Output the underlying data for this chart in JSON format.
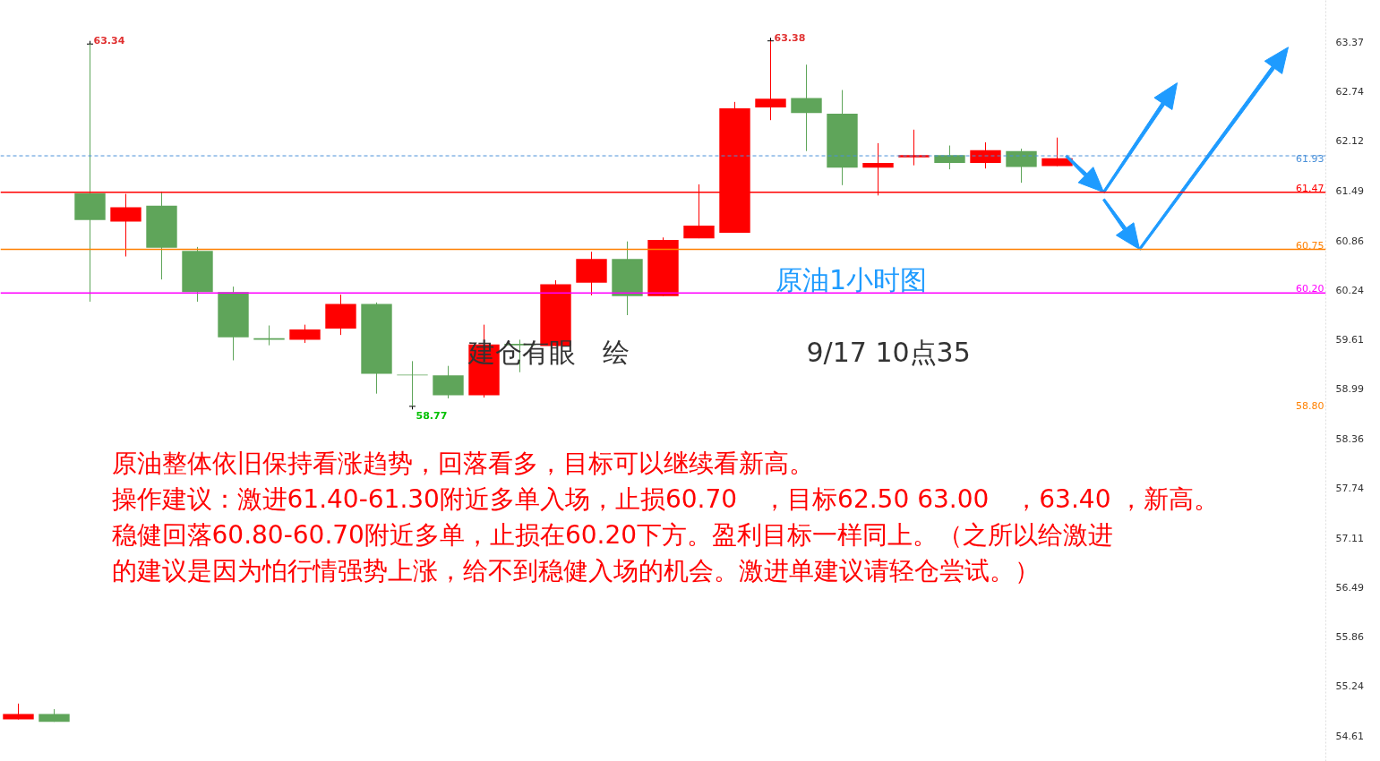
{
  "chart_data": {
    "type": "candlestick",
    "categories": [
      null,
      null,
      null,
      null,
      null,
      null,
      null,
      null,
      null,
      null,
      null,
      null,
      null,
      null,
      null,
      null,
      null,
      null,
      null,
      null,
      null,
      null,
      null,
      null,
      null,
      null,
      null,
      null,
      null,
      null,
      null,
      null,
      null,
      null,
      null,
      null,
      null
    ],
    "ohlc": [
      [
        54.82,
        55.02,
        54.82,
        54.89
      ],
      [
        54.89,
        54.95,
        54.79,
        54.79
      ],
      [
        61.46,
        63.34,
        60.09,
        61.12
      ],
      [
        61.1,
        61.45,
        60.66,
        61.28
      ],
      [
        61.3,
        61.48,
        60.37,
        60.77
      ],
      [
        60.73,
        60.78,
        60.09,
        60.21
      ],
      [
        60.21,
        60.28,
        59.35,
        59.64
      ],
      [
        59.63,
        59.79,
        59.54,
        59.61
      ],
      [
        59.61,
        59.8,
        59.57,
        59.74
      ],
      [
        59.75,
        60.18,
        59.67,
        60.06
      ],
      [
        60.06,
        60.08,
        58.93,
        59.18
      ],
      [
        59.17,
        59.34,
        58.77,
        59.16
      ],
      [
        59.16,
        59.28,
        58.87,
        58.91
      ],
      [
        58.91,
        59.8,
        58.88,
        59.55
      ],
      [
        59.56,
        59.61,
        59.2,
        59.54
      ],
      [
        59.53,
        60.36,
        59.53,
        60.31
      ],
      [
        60.33,
        60.72,
        60.17,
        60.63
      ],
      [
        60.63,
        60.85,
        59.92,
        60.16
      ],
      [
        60.16,
        60.9,
        60.16,
        60.87
      ],
      [
        60.89,
        61.57,
        60.89,
        61.05
      ],
      [
        60.96,
        62.61,
        60.96,
        62.53
      ],
      [
        62.54,
        63.38,
        62.38,
        62.65
      ],
      [
        62.66,
        63.08,
        61.99,
        62.47
      ],
      [
        62.46,
        62.76,
        61.56,
        61.78
      ],
      [
        61.78,
        62.09,
        61.43,
        61.84
      ],
      [
        61.91,
        62.26,
        61.81,
        61.94
      ],
      [
        61.94,
        62.06,
        61.76,
        61.84
      ],
      [
        61.84,
        62.1,
        61.77,
        62.0
      ],
      [
        61.99,
        62.02,
        61.59,
        61.79
      ],
      [
        61.8,
        62.16,
        61.8,
        61.9
      ],
      null,
      null,
      null,
      null,
      null,
      null,
      null
    ],
    "colors": [
      "#ff0000",
      "#5fa55a",
      "#5fa55a",
      "#ff0000",
      "#5fa55a",
      "#5fa55a",
      "#5fa55a",
      "#5fa55a",
      "#ff0000",
      "#ff0000",
      "#5fa55a",
      "#5fa55a",
      "#5fa55a",
      "#ff0000",
      "#5fa55a",
      "#ff0000",
      "#ff0000",
      "#5fa55a",
      "#ff0000",
      "#ff0000",
      "#ff0000",
      "#ff0000",
      "#5fa55a",
      "#5fa55a",
      "#ff0000",
      "#ff0000",
      "#5fa55a",
      "#ff0000",
      "#5fa55a",
      "#ff0000",
      null,
      null,
      null,
      null,
      null,
      null,
      null
    ],
    "ylim": [
      54.29,
      63.89
    ],
    "yticks": [
      63.37,
      62.74,
      62.12,
      61.49,
      60.86,
      60.24,
      59.61,
      58.99,
      58.36,
      57.74,
      57.11,
      56.49,
      55.86,
      55.24,
      54.61
    ],
    "tick_labels": "y",
    "grid": false,
    "ref_lines": [
      {
        "axis": "y",
        "value": 61.47,
        "label": "61.47",
        "color": "#ff0000",
        "line_style": "solid"
      },
      {
        "axis": "y",
        "value": 60.75,
        "label": "60.75",
        "color": "#ff8000",
        "line_style": "solid"
      },
      {
        "axis": "y",
        "value": 60.2,
        "label": "60.20",
        "color": "#ff00ff",
        "line_style": "solid"
      },
      {
        "axis": "y",
        "value": 61.93,
        "label": "61.93",
        "color": "#4a90d9",
        "line_style": "dashed"
      }
    ],
    "annotations": [
      "63.34",
      "63.38",
      "58.77",
      "原油1小时图",
      "建仓有眼　绘",
      "9/17     10点35",
      "原油整体依旧保持看涨趋势，回落看多，目标可以继续看新高。",
      "操作建议：激进61.40-61.30附近多单入场，止损60.70　，目标62.50  63.00　，63.40 ，新高。",
      "稳健回落60.80-60.70附近多单，止损在60.20下方。盈利目标一样同上。（之所以给激进",
      "的建议是因为怕行情强势上涨，给不到稳健入场的机会。激进单建议请轻仓尝试。）",
      "58.80"
    ]
  }
}
